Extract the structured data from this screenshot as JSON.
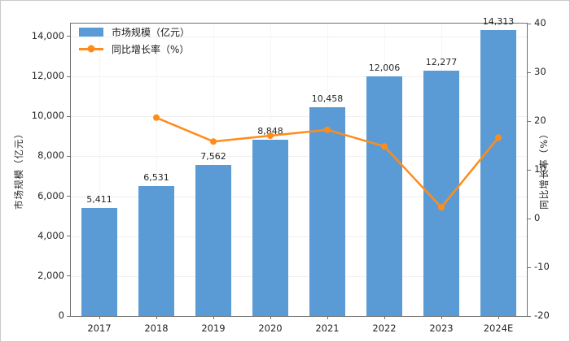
{
  "figure": {
    "background": "#ffffff",
    "border_color": "#c9c9c9"
  },
  "colors": {
    "bar": "#5b9bd5",
    "line": "#ff8c1a",
    "spine": "#707070",
    "grid": "#f0f0f0",
    "text": "#262626"
  },
  "legend": {
    "items": [
      {
        "label": "市场规模（亿元）",
        "marker": "bar-swatch"
      },
      {
        "label": "同比增长率（%）",
        "marker": "line-marker"
      }
    ]
  },
  "chart_data": {
    "type": "bar+line",
    "categories": [
      "2017",
      "2018",
      "2019",
      "2020",
      "2021",
      "2022",
      "2023",
      "2024E"
    ],
    "series": [
      {
        "name": "市场规模（亿元）",
        "type": "bar",
        "axis": "left",
        "color": "#5b9bd5",
        "values": [
          5411,
          6531,
          7562,
          8848,
          10458,
          12006,
          12277,
          14313
        ],
        "value_labels": [
          "5,411",
          "6,531",
          "7,562",
          "8,848",
          "10,458",
          "12,006",
          "12,277",
          "14,313"
        ]
      },
      {
        "name": "同比增长率（%）",
        "type": "line",
        "axis": "right",
        "color": "#ff8c1a",
        "start_index": 1,
        "values": [
          20.7,
          15.8,
          17.0,
          18.2,
          14.8,
          2.3,
          16.6
        ]
      }
    ],
    "left_axis": {
      "label": "市场规模（亿元）",
      "min": 0,
      "max": 14650,
      "ticks": [
        0,
        2000,
        4000,
        6000,
        8000,
        10000,
        12000,
        14000
      ],
      "tick_labels": [
        "0",
        "2,000",
        "4,000",
        "6,000",
        "8,000",
        "10,000",
        "12,000",
        "14,000"
      ]
    },
    "right_axis": {
      "label": "同比增长率（%）",
      "min": -20,
      "max": 40,
      "ticks": [
        40,
        30,
        20,
        10,
        0,
        -10,
        -20
      ],
      "tick_labels": [
        "40",
        "30",
        "20",
        "10",
        "0",
        "-10",
        "-20"
      ]
    },
    "grid": true,
    "legend_position": "top-left"
  }
}
